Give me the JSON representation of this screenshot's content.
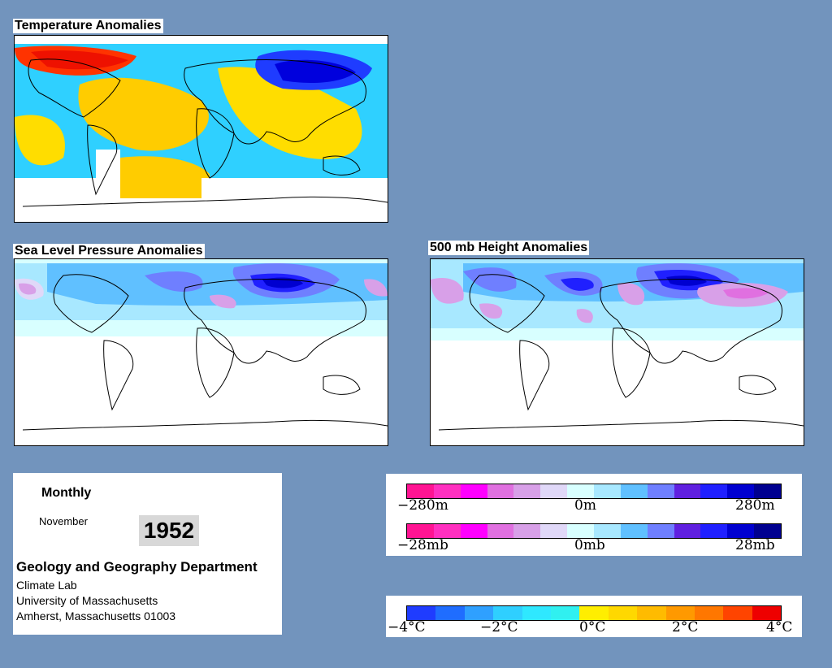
{
  "titles": {
    "temperature": "Temperature Anomalies",
    "slp": "Sea Level Pressure Anomalies",
    "height": "500 mb Height Anomalies"
  },
  "info": {
    "period": "Monthly",
    "month": "November",
    "year": "1952",
    "department": "Geology and Geography Department",
    "lab": "Climate Lab",
    "university": "University of Massachusetts",
    "address": "Amherst, Massachusetts 01003"
  },
  "legend_height": {
    "min_label": "−280m",
    "mid_label": "0m",
    "max_label": "280m",
    "colors": [
      "#ff1493",
      "#ff30c0",
      "#ff00ff",
      "#e070e0",
      "#d8a0e8",
      "#e0d8f8",
      "#d8ffff",
      "#a8e8ff",
      "#60c0ff",
      "#6f7fff",
      "#6020e0",
      "#2020ff",
      "#0000d0",
      "#000090"
    ]
  },
  "legend_pressure": {
    "min_label": "−28mb",
    "mid_label": "0mb",
    "max_label": "28mb",
    "colors": [
      "#ff1493",
      "#ff30c0",
      "#ff00ff",
      "#e070e0",
      "#d8a0e8",
      "#e0d8f8",
      "#d8ffff",
      "#a8e8ff",
      "#60c0ff",
      "#6f7fff",
      "#6020e0",
      "#2020ff",
      "#0000d0",
      "#000090"
    ]
  },
  "legend_temperature": {
    "labels": [
      "−4°C",
      "−2°C",
      "0°C",
      "2°C",
      "4°C"
    ],
    "colors": [
      "#1f3cff",
      "#1f6dff",
      "#2fa0ff",
      "#2fcfff",
      "#2fe8ff",
      "#30f0f0",
      "#ffee00",
      "#ffd800",
      "#ffbb00",
      "#ff9900",
      "#ff7700",
      "#ff4400",
      "#ee0000"
    ]
  }
}
